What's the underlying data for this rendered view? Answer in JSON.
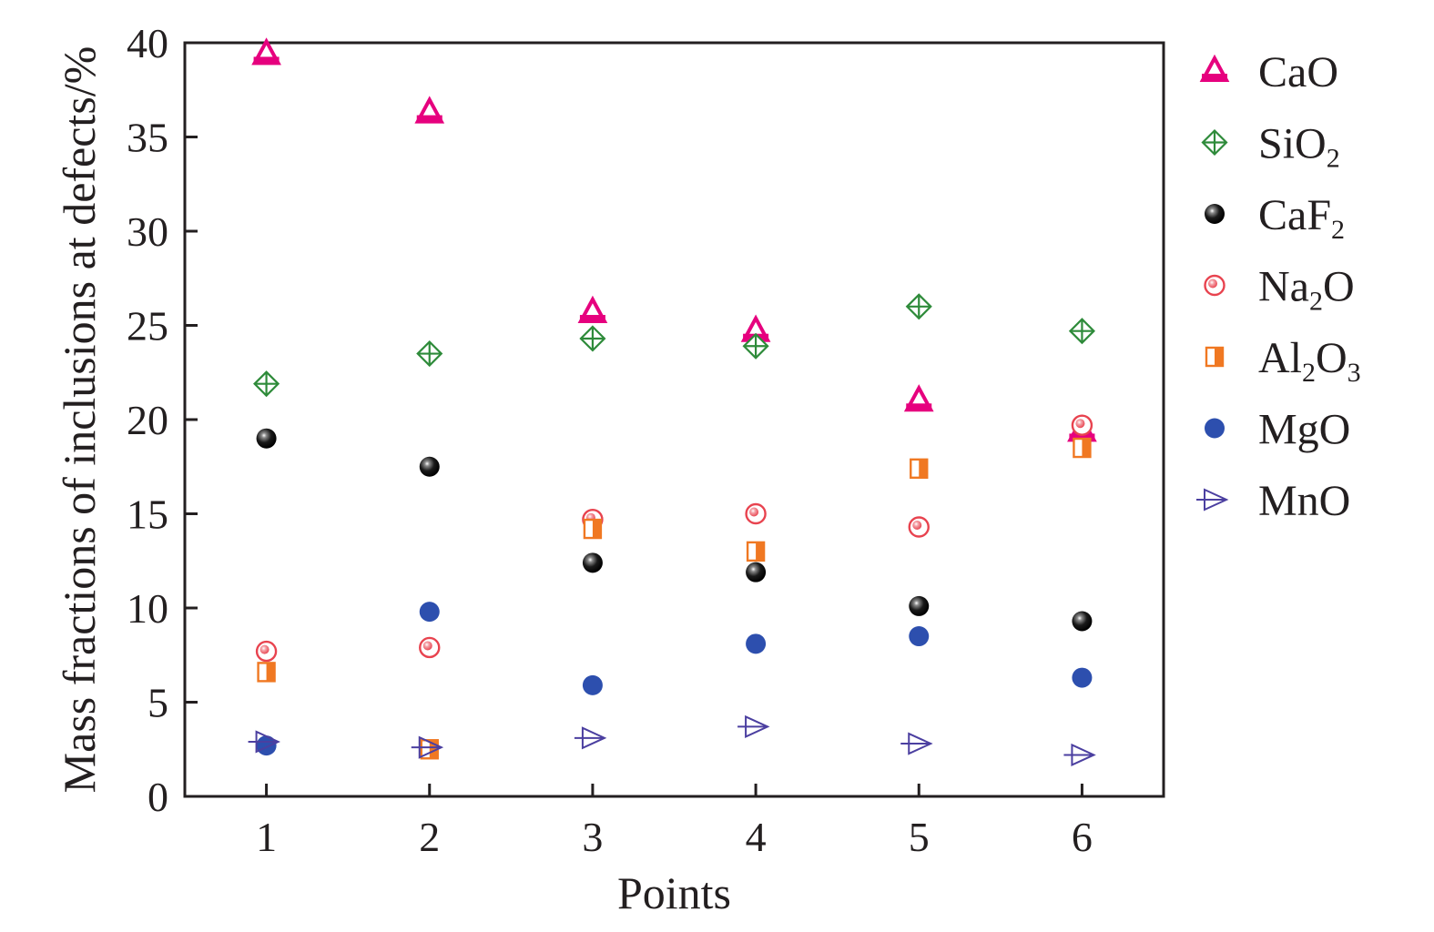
{
  "chart_data": {
    "type": "scatter",
    "xlabel": "Points",
    "ylabel": "Mass fractions of inclusions at defects/%",
    "x": [
      1,
      2,
      3,
      4,
      5,
      6
    ],
    "xlim": [
      0.5,
      6.5
    ],
    "ylim": [
      0,
      40
    ],
    "xticks": [
      "1",
      "2",
      "3",
      "4",
      "5",
      "6"
    ],
    "yticks": [
      "0",
      "5",
      "10",
      "15",
      "20",
      "25",
      "30",
      "35",
      "40"
    ],
    "grid": false,
    "legend_position": "right",
    "series": [
      {
        "name": "CaO",
        "label_main": "CaO",
        "label_sub": "",
        "label_tail": "",
        "marker": "triangle-up",
        "color": "#e6007e",
        "values": [
          39.4,
          36.3,
          25.7,
          24.7,
          21.0,
          19.4
        ]
      },
      {
        "name": "SiO2",
        "label_main": "SiO",
        "label_sub": "2",
        "label_tail": "",
        "marker": "diamond-cross",
        "color": "#2e8b3a",
        "values": [
          21.9,
          23.5,
          24.3,
          23.9,
          26.0,
          24.7
        ]
      },
      {
        "name": "CaF2",
        "label_main": "CaF",
        "label_sub": "2",
        "label_tail": "",
        "marker": "sphere",
        "color": "#000000",
        "values": [
          19.0,
          17.5,
          12.4,
          11.9,
          10.1,
          9.3
        ]
      },
      {
        "name": "Na2O",
        "label_main": "Na",
        "label_sub": "2",
        "label_tail": "O",
        "marker": "ring-dot",
        "color": "#e8434f",
        "values": [
          7.7,
          7.9,
          14.7,
          15.0,
          14.3,
          19.7
        ]
      },
      {
        "name": "Al2O3",
        "label_main": "Al",
        "label_sub": "2",
        "label_tail": "O",
        "label_sub2": "3",
        "marker": "half-square",
        "color": "#f07822",
        "values": [
          6.6,
          2.5,
          14.2,
          13.0,
          17.4,
          18.5
        ]
      },
      {
        "name": "MgO",
        "label_main": "MgO",
        "label_sub": "",
        "label_tail": "",
        "marker": "circle",
        "color": "#2d4fae",
        "values": [
          2.7,
          9.8,
          5.9,
          8.1,
          8.5,
          6.3
        ]
      },
      {
        "name": "MnO",
        "label_main": "MnO",
        "label_sub": "",
        "label_tail": "",
        "marker": "triangle-right",
        "color": "#4b3fa0",
        "values": [
          2.9,
          2.6,
          3.1,
          3.7,
          2.8,
          2.2
        ]
      }
    ]
  }
}
